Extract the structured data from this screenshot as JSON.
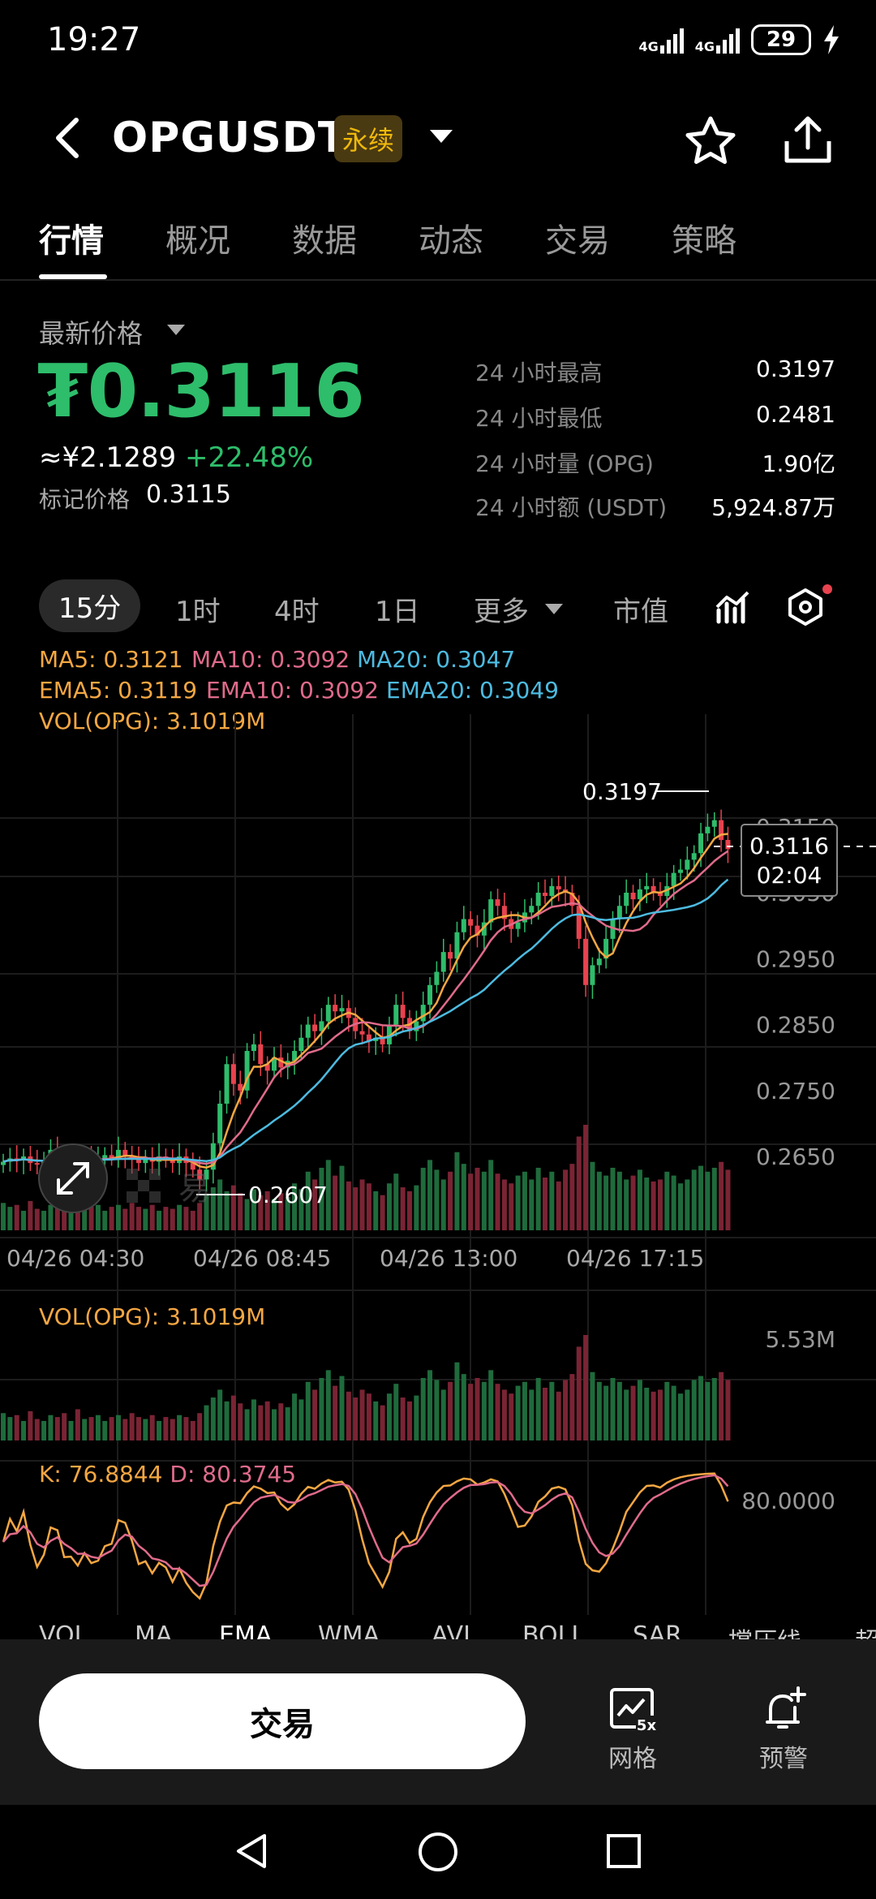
{
  "status_bar": {
    "time": "19:27",
    "network1": "4G",
    "network2": "4G",
    "battery": "29"
  },
  "header": {
    "symbol": "OPGUSDT",
    "badge": "永续"
  },
  "tabs": [
    "行情",
    "概况",
    "数据",
    "动态",
    "交易",
    "策略"
  ],
  "price": {
    "latest_label": "最新价格",
    "price": "₮0.3116",
    "cny": "≈¥2.1289",
    "change_pct": "+22.48%",
    "mark_label": "标记价格",
    "mark_value": "0.3115"
  },
  "stats": [
    {
      "label": "24 小时最高",
      "value": "0.3197"
    },
    {
      "label": "24 小时最低",
      "value": "0.2481"
    },
    {
      "label": "24 小时量 (OPG)",
      "value": "1.90亿"
    },
    {
      "label": "24 小时额 (USDT)",
      "value": "5,924.87万"
    }
  ],
  "timeframes": [
    "15分",
    "1时",
    "4时",
    "1日",
    "更多",
    "市值"
  ],
  "legends": {
    "ma5": "MA5: 0.3121",
    "ma10": "MA10: 0.3092",
    "ma20": "MA20: 0.3047",
    "ema5": "EMA5: 0.3119",
    "ema10": "EMA10: 0.3092",
    "ema20": "EMA20: 0.3049",
    "vol": "VOL(OPG): 3.1019M"
  },
  "chart_labels": {
    "high_marker": "0.3197",
    "low_marker": "0.2607",
    "current_price": "0.3116",
    "countdown": "02:04",
    "watermark": "易"
  },
  "vol_panel": {
    "title": "VOL(OPG): 3.1019M",
    "max": "5.53M"
  },
  "kd_panel": {
    "k": "K: 76.8844",
    "d": "D: 80.3745",
    "level": "80.0000"
  },
  "indicator_tabs": [
    "VOL",
    "MA",
    "EMA",
    "WMA",
    "AVL",
    "BOLL",
    "SAR",
    "撑压线",
    "超"
  ],
  "actions": {
    "trade": "交易",
    "grid": "网格",
    "grid_badge": "5x",
    "alert": "预警"
  },
  "colors": {
    "up": "#2ebd6b",
    "down": "#e8424e",
    "ma5": "#f5a742",
    "ma10": "#e06b8b",
    "ma20": "#4dbbe0"
  },
  "chart_data": {
    "type": "candlestick",
    "price_axis": [
      "0.3150",
      "0.3050",
      "0.2950",
      "0.2850",
      "0.2750",
      "0.2650"
    ],
    "time_axis": [
      "04/26 04:30",
      "04/26 08:45",
      "04/26 13:00",
      "04/26 17:15"
    ],
    "price_range": [
      0.257,
      0.321
    ],
    "kd_level": 80,
    "close": [
      0.2642,
      0.2647,
      0.2644,
      0.265,
      0.264,
      0.2638,
      0.2645,
      0.266,
      0.265,
      0.2635,
      0.2645,
      0.264,
      0.265,
      0.264,
      0.2645,
      0.2652,
      0.2648,
      0.266,
      0.265,
      0.2645,
      0.264,
      0.2648,
      0.2642,
      0.265,
      0.2645,
      0.264,
      0.265,
      0.264,
      0.263,
      0.2615,
      0.263,
      0.267,
      0.273,
      0.279,
      0.276,
      0.275,
      0.281,
      0.282,
      0.279,
      0.278,
      0.28,
      0.2785,
      0.2795,
      0.281,
      0.283,
      0.285,
      0.284,
      0.2855,
      0.288,
      0.287,
      0.2875,
      0.286,
      0.284,
      0.2835,
      0.2825,
      0.283,
      0.282,
      0.285,
      0.288,
      0.286,
      0.284,
      0.2855,
      0.288,
      0.291,
      0.293,
      0.296,
      0.295,
      0.299,
      0.301,
      0.3,
      0.2985,
      0.3005,
      0.304,
      0.303,
      0.301,
      0.2995,
      0.3005,
      0.302,
      0.303,
      0.305,
      0.3045,
      0.306,
      0.3055,
      0.305,
      0.303,
      0.298,
      0.291,
      0.294,
      0.295,
      0.298,
      0.301,
      0.303,
      0.305,
      0.304,
      0.3055,
      0.306,
      0.305,
      0.3045,
      0.306,
      0.308,
      0.3085,
      0.31,
      0.311,
      0.314,
      0.315,
      0.316,
      0.313,
      0.3116
    ],
    "volume": [
      1.4,
      1.2,
      1.3,
      1.0,
      1.5,
      1.1,
      1.0,
      1.3,
      1.2,
      1.4,
      1.0,
      1.6,
      1.1,
      1.2,
      1.3,
      1.0,
      1.2,
      1.3,
      1.1,
      1.4,
      1.2,
      1.1,
      1.3,
      1.0,
      1.2,
      1.1,
      1.3,
      1.2,
      1.0,
      1.4,
      1.8,
      2.2,
      2.6,
      2.0,
      2.3,
      1.9,
      1.6,
      2.1,
      1.8,
      2.0,
      1.6,
      1.9,
      1.7,
      2.4,
      2.1,
      3.0,
      2.6,
      3.2,
      3.6,
      2.8,
      3.3,
      2.5,
      2.2,
      2.6,
      2.4,
      2.0,
      1.8,
      2.4,
      2.9,
      2.2,
      2.0,
      2.3,
      3.2,
      3.6,
      3.1,
      2.6,
      3.0,
      4.0,
      3.4,
      2.9,
      3.2,
      3.0,
      3.6,
      2.9,
      2.6,
      2.4,
      2.8,
      3.0,
      2.6,
      3.2,
      2.7,
      3.0,
      2.5,
      3.1,
      3.4,
      4.8,
      5.4,
      3.5,
      3.0,
      2.8,
      3.2,
      3.0,
      2.6,
      2.8,
      3.1,
      2.7,
      2.5,
      2.6,
      3.0,
      2.8,
      2.4,
      2.6,
      3.1,
      3.3,
      3.0,
      3.2,
      3.5,
      3.1
    ]
  }
}
